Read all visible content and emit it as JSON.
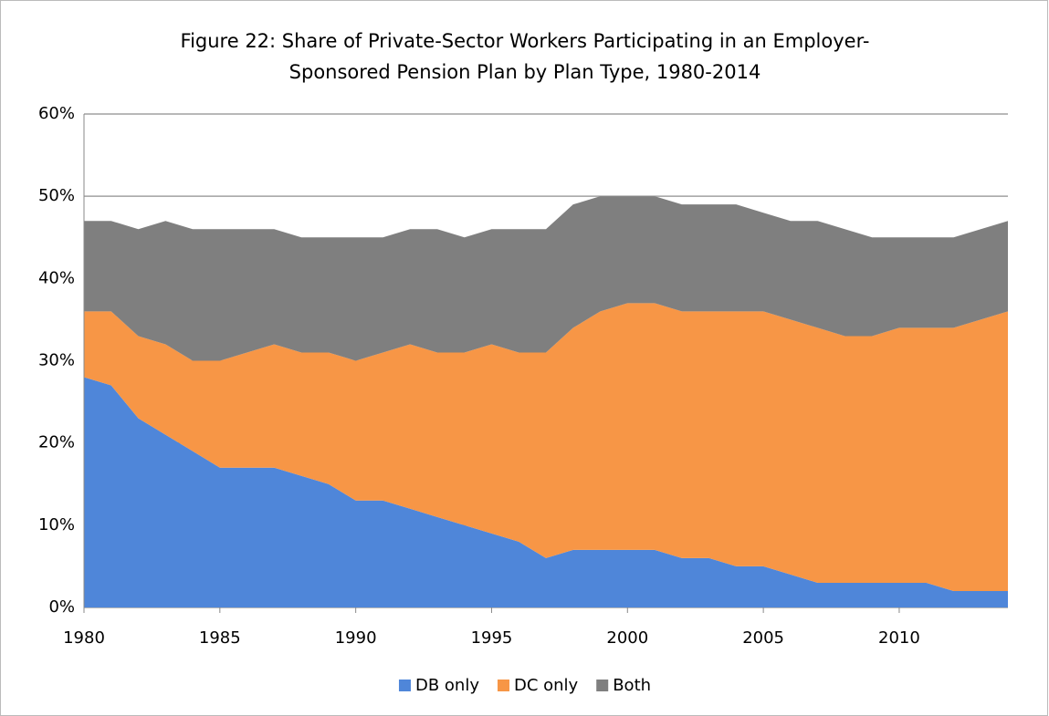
{
  "chart_data": {
    "type": "stacked_area",
    "title": [
      "Figure 22: Share of Private-Sector Workers Participating in an Employer-",
      "Sponsored Pension Plan by Plan Type, 1980-2014"
    ],
    "x": [
      1980,
      1981,
      1982,
      1983,
      1984,
      1985,
      1986,
      1987,
      1988,
      1989,
      1990,
      1991,
      1992,
      1993,
      1994,
      1995,
      1996,
      1997,
      1998,
      1999,
      2000,
      2001,
      2002,
      2003,
      2004,
      2005,
      2006,
      2007,
      2008,
      2009,
      2010,
      2011,
      2012,
      2013,
      2014
    ],
    "series": [
      {
        "name": "DB only",
        "color": "#4f86d9",
        "values": [
          28,
          27,
          23,
          21,
          19,
          17,
          17,
          17,
          16,
          15,
          13,
          13,
          12,
          11,
          10,
          9,
          8,
          6,
          7,
          7,
          7,
          7,
          6,
          6,
          5,
          5,
          4,
          3,
          3,
          3,
          3,
          3,
          2,
          2,
          2
        ]
      },
      {
        "name": "DC only",
        "color": "#f79646",
        "values": [
          8,
          9,
          10,
          11,
          11,
          13,
          14,
          15,
          15,
          16,
          17,
          18,
          20,
          20,
          21,
          23,
          23,
          25,
          27,
          29,
          30,
          30,
          30,
          30,
          31,
          31,
          31,
          31,
          30,
          30,
          31,
          31,
          32,
          33,
          34
        ]
      },
      {
        "name": "Both",
        "color": "#7f7f7f",
        "values": [
          11,
          11,
          13,
          15,
          16,
          16,
          15,
          14,
          14,
          14,
          15,
          14,
          14,
          15,
          14,
          14,
          15,
          15,
          15,
          14,
          13,
          13,
          13,
          13,
          13,
          12,
          12,
          13,
          13,
          12,
          11,
          11,
          11,
          11,
          11
        ]
      }
    ],
    "xlim": [
      1980,
      2014
    ],
    "xticks": [
      1980,
      1985,
      1990,
      1995,
      2000,
      2005,
      2010
    ],
    "ylim": [
      0,
      60
    ],
    "yticks": [
      {
        "value": 0,
        "label": "0%"
      },
      {
        "value": 10,
        "label": "10%"
      },
      {
        "value": 20,
        "label": "20%"
      },
      {
        "value": 30,
        "label": "30%"
      },
      {
        "value": 40,
        "label": "40%"
      },
      {
        "value": 50,
        "label": "50%"
      },
      {
        "value": 60,
        "label": "60%"
      }
    ],
    "grid": true,
    "legend": "bottom"
  }
}
